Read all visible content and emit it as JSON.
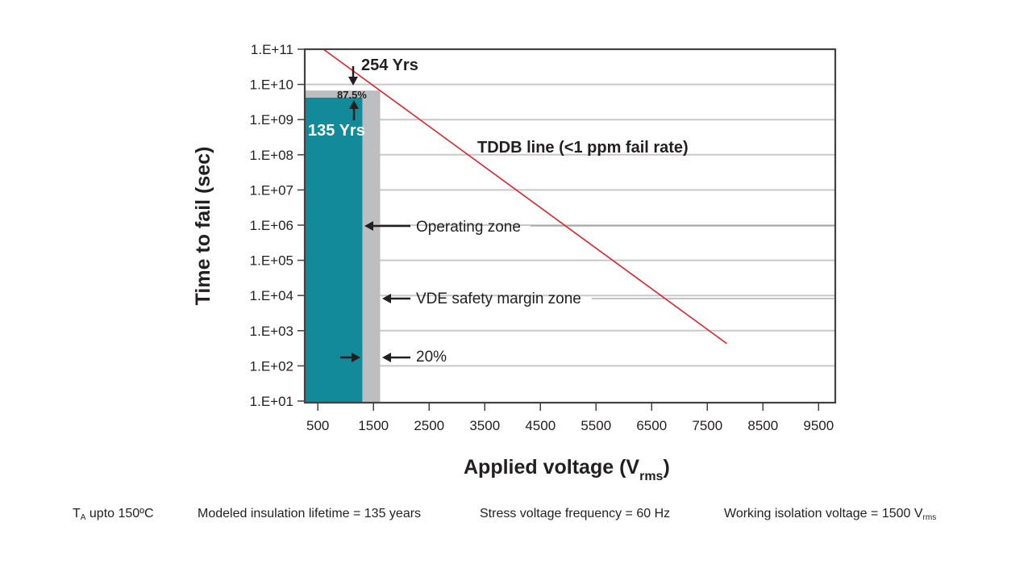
{
  "chart_data": {
    "type": "line",
    "title": "",
    "xlabel": "Applied voltage (V",
    "xlabel_sub": "rms",
    "xlabel_close": ")",
    "ylabel": "Time to fail (sec)",
    "x_scale": "linear",
    "y_scale": "log",
    "xlim": [
      265,
      9800
    ],
    "ylim": [
      10,
      100000000000
    ],
    "x_ticks": [
      500,
      1500,
      2500,
      3500,
      4500,
      5500,
      6500,
      7500,
      8500,
      9500
    ],
    "x_tick_labels": [
      "500",
      "1500",
      "2500",
      "3500",
      "4500",
      "5500",
      "6500",
      "7500",
      "8500",
      "9500"
    ],
    "y_ticks": [
      10,
      100,
      1000,
      10000,
      100000,
      1000000,
      10000000,
      100000000,
      1000000000,
      10000000000,
      100000000000
    ],
    "y_tick_labels": [
      "1.E+01",
      "1.E+02",
      "1.E+03",
      "1.E+04",
      "1.E+05",
      "1.E+06",
      "1.E+07",
      "1.E+08",
      "1.E+09",
      "1.E+10",
      "1.E+11"
    ],
    "grid": "horizontal",
    "series": [
      {
        "name": "TDDB line (<1 ppm fail rate)",
        "color": "#e3202a",
        "x": [
          600,
          7850
        ],
        "y": [
          100000000000,
          430
        ]
      }
    ],
    "zones": [
      {
        "name": "VDE safety margin zone",
        "color": "#bcbec0",
        "x_max": 1620,
        "y_max": 6700000000
      },
      {
        "name": "Operating zone",
        "color": "#128a9a",
        "x_max": 1300,
        "y_max": 4200000000
      }
    ],
    "annotations": {
      "lifetime_upper": "254 Yrs",
      "lifetime_lower": "135 Yrs",
      "ratio": "87.5%",
      "tddb_label": "TDDB line (<1 ppm fail rate)",
      "operating_zone": "Operating zone",
      "vde_zone": "VDE safety margin zone",
      "margin_pct": "20%"
    }
  },
  "footer": {
    "temp_prefix": "T",
    "temp_sub": "A",
    "temp_suffix": " upto 150ºC",
    "lifetime": "Modeled insulation lifetime = 135 years",
    "frequency": "Stress voltage frequency = 60 Hz",
    "working_prefix": "Working isolation voltage = 1500 V",
    "working_sub": "rms"
  },
  "colors": {
    "teal": "#128a9a",
    "gray_zone": "#bcbec0",
    "tddb_red": "#e3202a",
    "grid": "#c8c8c8",
    "axis": "#414042",
    "text": "#231f20"
  }
}
